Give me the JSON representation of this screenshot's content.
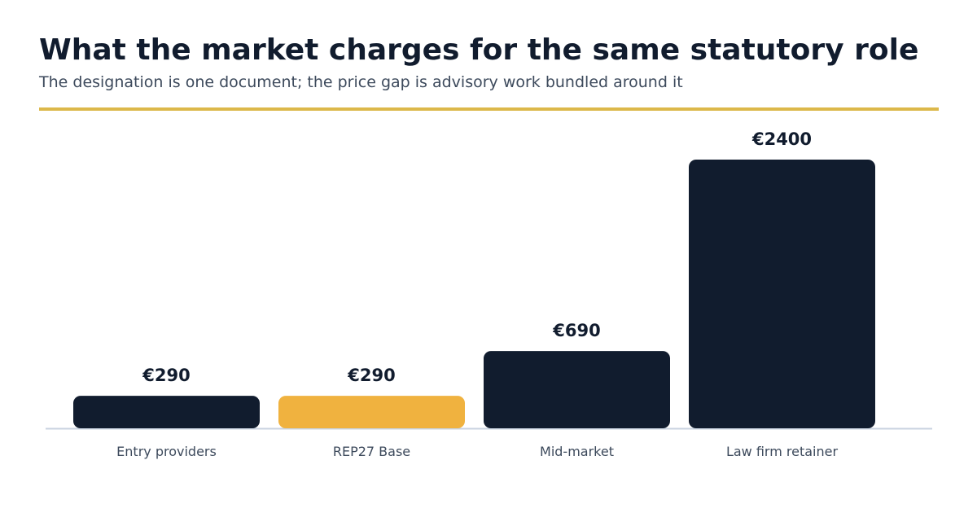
{
  "header": {
    "title": "What the market charges for the same statutory role",
    "subtitle": "The designation is one document; the price gap is advisory work bundled around it"
  },
  "colors": {
    "bar_default": "#111c2e",
    "bar_highlight": "#f0b23f",
    "accent_rule": "#dcb84a",
    "axis": "#c9d3e0"
  },
  "chart_data": {
    "type": "bar",
    "title": "What the market charges for the same statutory role",
    "subtitle": "The designation is one document; the price gap is advisory work bundled around it",
    "categories": [
      "Entry providers",
      "REP27 Base",
      "Mid-market",
      "Law firm retainer"
    ],
    "values": [
      290,
      290,
      690,
      2400
    ],
    "value_labels": [
      "€290",
      "€290",
      "€690",
      "€2400"
    ],
    "highlight": [
      false,
      true,
      false,
      false
    ],
    "xlabel": "",
    "ylabel": "",
    "ylim": [
      0,
      2400
    ],
    "grid": false,
    "legend": "none"
  }
}
